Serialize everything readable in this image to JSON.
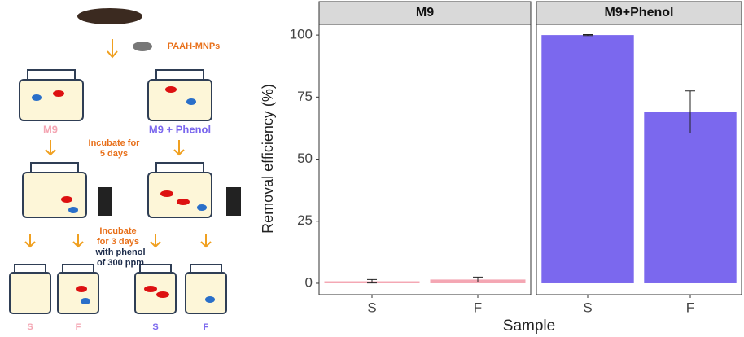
{
  "diagram": {
    "particles": "PAAH-MNPs",
    "medium_a": "M9",
    "medium_b": "M9 + Phenol",
    "step_1": [
      "Incubate for",
      "5 days"
    ],
    "step_2": [
      "Incubate",
      "for 3 days"
    ],
    "step_2_detail": [
      "with phenol",
      "of 300 ppm"
    ],
    "samples": [
      "S",
      "F",
      "S",
      "F"
    ]
  },
  "chart_data": [
    {
      "type": "bar",
      "title": "M9",
      "categories": [
        "S",
        "F"
      ],
      "values": [
        0.8,
        1.5
      ],
      "errors": [
        0.7,
        1.0
      ],
      "color": "#f4a6b3",
      "ylim": [
        -4.6,
        104.3
      ],
      "yticks": [
        0,
        25,
        50,
        75,
        100
      ],
      "ylabel": "Removal efficiency (%)",
      "xlabel": "Sample"
    },
    {
      "type": "bar",
      "title": "M9+Phenol",
      "categories": [
        "S",
        "F"
      ],
      "values": [
        100,
        69
      ],
      "errors": [
        0.2,
        8.5
      ],
      "color": "#7b68ee",
      "ylim": [
        -4.6,
        104.3
      ]
    }
  ]
}
